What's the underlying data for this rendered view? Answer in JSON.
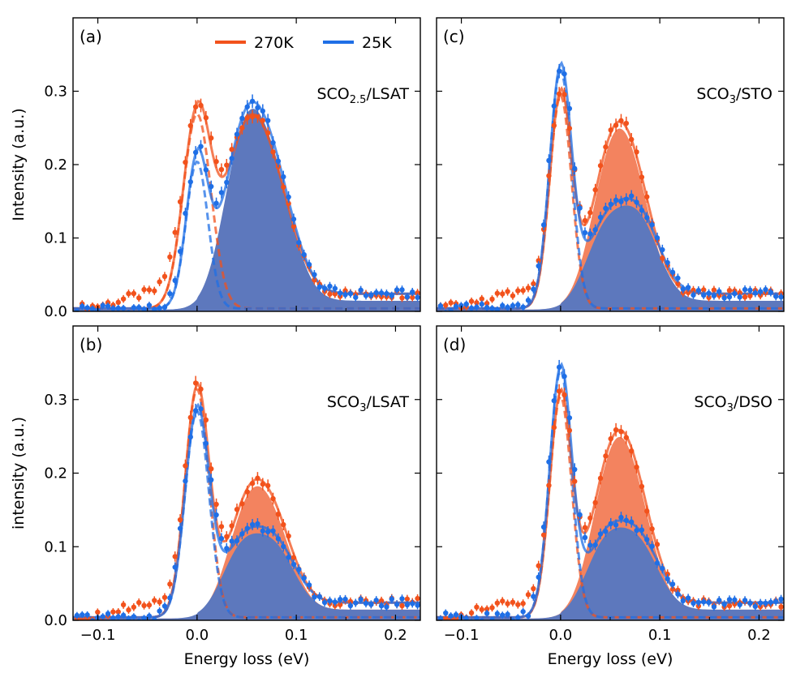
{
  "figure": {
    "x_axis_label": "Energy loss (eV)",
    "series_legend": [
      {
        "label": "270K",
        "color": "#f2521c"
      },
      {
        "label": "25K",
        "color": "#1f6fe6"
      }
    ],
    "colors": {
      "hot_fill": "#f3835f",
      "cold_fill": "#5d78bd",
      "cold_fill_light": "#85aef0"
    }
  },
  "chart_data": [
    {
      "panel": "(a)",
      "type": "line",
      "sample_prefix": "SCO",
      "sample_sub": "2.5",
      "sample_suffix": "/LSAT",
      "ylabel": "Intensity (a.u.)",
      "xlim": [
        -0.125,
        0.225
      ],
      "ylim": [
        0,
        0.4
      ],
      "xticks": [
        "−0.1",
        "0.0",
        "0.1",
        "0.2"
      ],
      "yticks": [
        "0.0",
        "0.1",
        "0.2",
        "0.3"
      ],
      "series": [
        {
          "name": "270K",
          "elastic": {
            "amp": 0.265,
            "center": 0.0,
            "sigma": 0.014
          },
          "phonon": {
            "amp": 0.245,
            "peaks": [
              {
                "c": 0.045,
                "w": 0.02,
                "a": 0.9
              },
              {
                "c": 0.075,
                "w": 0.022,
                "a": 0.78
              }
            ]
          },
          "background": 0.02
        },
        {
          "name": "25K",
          "elastic": {
            "amp": 0.2,
            "center": 0.0,
            "sigma": 0.011
          },
          "phonon": {
            "amp": 0.262,
            "peaks": [
              {
                "c": 0.045,
                "w": 0.02,
                "a": 0.9
              },
              {
                "c": 0.075,
                "w": 0.022,
                "a": 0.8
              }
            ]
          },
          "background": 0.02
        }
      ]
    },
    {
      "panel": "(c)",
      "type": "line",
      "sample_prefix": "SCO",
      "sample_sub": "3",
      "sample_suffix": "/STO",
      "ylabel": "",
      "xlim": [
        -0.125,
        0.225
      ],
      "ylim": [
        0,
        0.4
      ],
      "xticks": [
        "−0.1",
        "0.0",
        "0.1",
        "0.2"
      ],
      "yticks": [
        "",
        "",
        "",
        ""
      ],
      "series": [
        {
          "name": "270K",
          "elastic": {
            "amp": 0.29,
            "center": 0.0,
            "sigma": 0.011
          },
          "phonon": {
            "amp": 0.235,
            "peaks": [
              {
                "c": 0.05,
                "w": 0.02,
                "a": 0.95
              },
              {
                "c": 0.075,
                "w": 0.02,
                "a": 0.7
              }
            ]
          },
          "background": 0.02
        },
        {
          "name": "25K",
          "elastic": {
            "amp": 0.325,
            "center": 0.0,
            "sigma": 0.011
          },
          "phonon": {
            "amp": 0.13,
            "peaks": [
              {
                "c": 0.045,
                "w": 0.02,
                "a": 0.85
              },
              {
                "c": 0.08,
                "w": 0.02,
                "a": 0.95
              }
            ]
          },
          "background": 0.02
        }
      ]
    },
    {
      "panel": "(b)",
      "type": "line",
      "sample_prefix": "SCO",
      "sample_sub": "3",
      "sample_suffix": "/LSAT",
      "ylabel": "intensity (a.u.)",
      "xlim": [
        -0.125,
        0.225
      ],
      "ylim": [
        0,
        0.4
      ],
      "xticks": [
        "−0.1",
        "0.0",
        "0.1",
        "0.2"
      ],
      "yticks": [
        "0.0",
        "0.1",
        "0.2",
        "0.3"
      ],
      "series": [
        {
          "name": "270K",
          "elastic": {
            "amp": 0.31,
            "center": 0.0,
            "sigma": 0.012
          },
          "phonon": {
            "amp": 0.168,
            "peaks": [
              {
                "c": 0.05,
                "w": 0.02,
                "a": 0.95
              },
              {
                "c": 0.078,
                "w": 0.02,
                "a": 0.75
              }
            ]
          },
          "background": 0.02
        },
        {
          "name": "25K",
          "elastic": {
            "amp": 0.28,
            "center": 0.0,
            "sigma": 0.012
          },
          "phonon": {
            "amp": 0.104,
            "peaks": [
              {
                "c": 0.045,
                "w": 0.02,
                "a": 0.9
              },
              {
                "c": 0.08,
                "w": 0.02,
                "a": 0.85
              }
            ]
          },
          "background": 0.02
        }
      ]
    },
    {
      "panel": "(d)",
      "type": "line",
      "sample_prefix": "SCO",
      "sample_sub": "3",
      "sample_suffix": "/DSO",
      "ylabel": "",
      "xlim": [
        -0.125,
        0.225
      ],
      "ylim": [
        0,
        0.4
      ],
      "xticks": [
        "−0.1",
        "0.0",
        "0.1",
        "0.2"
      ],
      "yticks": [
        "",
        "",
        "",
        ""
      ],
      "series": [
        {
          "name": "270K",
          "elastic": {
            "amp": 0.3,
            "center": 0.0,
            "sigma": 0.011
          },
          "phonon": {
            "amp": 0.235,
            "peaks": [
              {
                "c": 0.05,
                "w": 0.02,
                "a": 0.95
              },
              {
                "c": 0.075,
                "w": 0.02,
                "a": 0.7
              }
            ]
          },
          "background": 0.02
        },
        {
          "name": "25K",
          "elastic": {
            "amp": 0.335,
            "center": 0.0,
            "sigma": 0.011
          },
          "phonon": {
            "amp": 0.112,
            "peaks": [
              {
                "c": 0.045,
                "w": 0.02,
                "a": 0.9
              },
              {
                "c": 0.08,
                "w": 0.02,
                "a": 0.85
              }
            ]
          },
          "background": 0.02
        }
      ]
    }
  ]
}
